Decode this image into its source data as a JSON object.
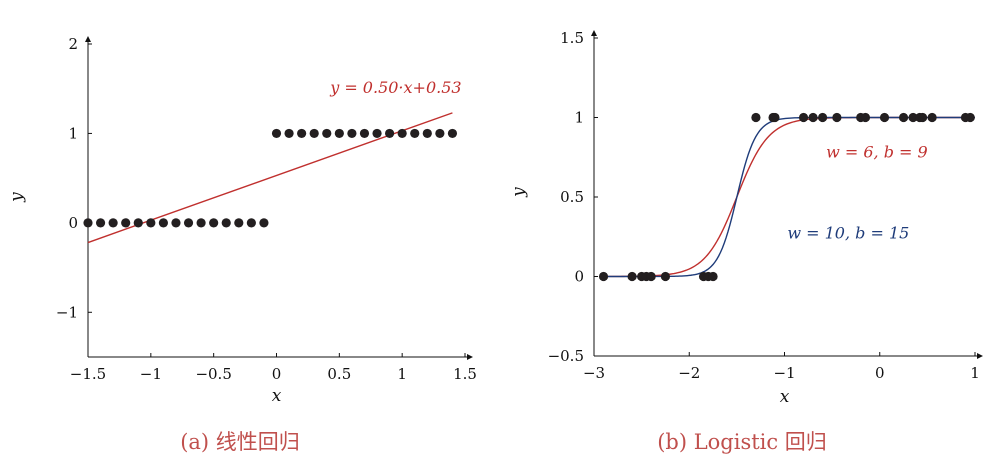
{
  "chart_data": [
    {
      "type": "scatter",
      "caption": "(a) 线性回归",
      "xlabel": "x",
      "ylabel": "y",
      "xlim": [
        -1.5,
        1.5
      ],
      "ylim": [
        -1.5,
        2
      ],
      "xticks": [
        -1.5,
        -1,
        -0.5,
        0,
        0.5,
        1,
        1.5
      ],
      "xtick_labels": [
        "−1.5",
        "−1",
        "−0.5",
        "0",
        "0.5",
        "1",
        "1.5"
      ],
      "yticks": [
        -1,
        0,
        1,
        2
      ],
      "ytick_labels": [
        "−1",
        "0",
        "1",
        "2"
      ],
      "points": {
        "x": [
          -1.5,
          -1.4,
          -1.3,
          -1.2,
          -1.1,
          -1.0,
          -0.9,
          -0.8,
          -0.7,
          -0.6,
          -0.5,
          -0.4,
          -0.3,
          -0.2,
          -0.1,
          0.0,
          0.1,
          0.2,
          0.3,
          0.4,
          0.5,
          0.6,
          0.7,
          0.8,
          0.9,
          1.0,
          1.1,
          1.2,
          1.3,
          1.4
        ],
        "y": [
          0,
          0,
          0,
          0,
          0,
          0,
          0,
          0,
          0,
          0,
          0,
          0,
          0,
          0,
          0,
          1,
          1,
          1,
          1,
          1,
          1,
          1,
          1,
          1,
          1,
          1,
          1,
          1,
          1,
          1
        ],
        "color": "#231f20"
      },
      "series": [
        {
          "kind": "line",
          "name": "y = 0.50·x+0.53",
          "slope": 0.5,
          "intercept": 0.53,
          "x_range": [
            -1.5,
            1.4
          ],
          "color": "#c0302e"
        }
      ],
      "annotation": {
        "text": "y = 0.50·x+0.53",
        "x": 0.95,
        "y": 1.45,
        "color": "#c0302e"
      }
    },
    {
      "type": "scatter",
      "caption": "(b) Logistic 回归",
      "xlabel": "x",
      "ylabel": "y",
      "xlim": [
        -3,
        1
      ],
      "ylim": [
        -0.5,
        1.5
      ],
      "xticks": [
        -3,
        -2,
        -1,
        0,
        1
      ],
      "xtick_labels": [
        "−3",
        "−2",
        "−1",
        "0",
        "1"
      ],
      "yticks": [
        -0.5,
        0,
        0.5,
        1,
        1.5
      ],
      "ytick_labels": [
        "−0.5",
        "0",
        "0.5",
        "1",
        "1.5"
      ],
      "points": {
        "x": [
          -2.9,
          -2.6,
          -2.5,
          -2.45,
          -2.4,
          -2.25,
          -1.85,
          -1.8,
          -1.75,
          -1.3,
          -1.12,
          -1.1,
          -0.8,
          -0.7,
          -0.6,
          -0.45,
          -0.2,
          -0.15,
          0.05,
          0.25,
          0.35,
          0.42,
          0.45,
          0.55,
          0.9,
          0.95
        ],
        "y": [
          0,
          0,
          0,
          0,
          0,
          0,
          0,
          0,
          0,
          1,
          1,
          1,
          1,
          1,
          1,
          1,
          1,
          1,
          1,
          1,
          1,
          1,
          1,
          1,
          1,
          1
        ],
        "color": "#231f20"
      },
      "series": [
        {
          "kind": "sigmoid",
          "name": "w = 6, b = 9",
          "w": 6,
          "b": 9,
          "x_range": [
            -2.9,
            1
          ],
          "color": "#c0302e"
        },
        {
          "kind": "sigmoid",
          "name": "w = 10, b = 15",
          "w": 10,
          "b": 15,
          "x_range": [
            -2.9,
            1
          ],
          "color": "#1f3c7a"
        }
      ],
      "annotations": [
        {
          "text": "w = 6, b = 9",
          "x": -0.03,
          "y": 0.75,
          "color": "#c0302e"
        },
        {
          "text": "w = 10, b = 15",
          "x": -0.33,
          "y": 0.24,
          "color": "#1f3c7a"
        }
      ]
    }
  ]
}
